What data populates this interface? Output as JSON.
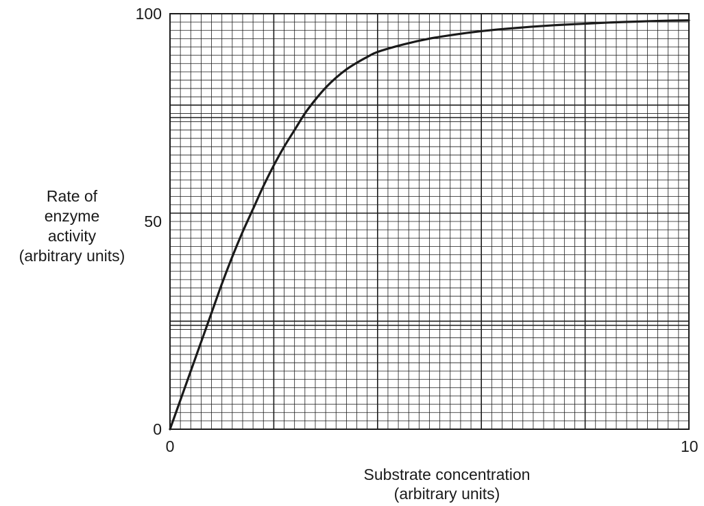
{
  "chart_data": {
    "type": "line",
    "title": "",
    "xlabel_lines": [
      "Substrate concentration",
      "(arbitrary units)"
    ],
    "ylabel_lines": [
      "Rate of",
      "enzyme",
      "activity",
      "(arbitrary units)"
    ],
    "xlim": [
      0,
      10
    ],
    "ylim": [
      0,
      100
    ],
    "x_ticks": [
      0,
      10
    ],
    "y_ticks": [
      0,
      50,
      100
    ],
    "grid": true,
    "grid_major_x_step": 2,
    "grid_major_y_step": 25,
    "grid_minor_x_step": 0.2,
    "grid_minor_y_step": 2,
    "series": [
      {
        "x": [
          0,
          0.2,
          0.4,
          0.6,
          0.8,
          1.0,
          1.2,
          1.4,
          1.6,
          1.8,
          2.0,
          2.2,
          2.4,
          2.6,
          2.8,
          3.0,
          3.2,
          3.4,
          3.6,
          3.8,
          4.0,
          4.5,
          5.0,
          5.5,
          6.0,
          6.5,
          7.0,
          7.5,
          8.0,
          8.5,
          9.0,
          9.5,
          10.0
        ],
        "y": [
          0,
          7,
          14,
          21,
          28,
          35,
          41.5,
          47.5,
          53,
          58.5,
          63.5,
          68,
          72,
          76,
          79.3,
          82.2,
          84.6,
          86.6,
          88.2,
          89.6,
          90.8,
          92.6,
          94,
          95,
          95.8,
          96.4,
          96.9,
          97.3,
          97.6,
          97.9,
          98.1,
          98.3,
          98.4
        ]
      }
    ],
    "colors": {
      "line": "#1a1a1a",
      "grid": "#1a1a1a",
      "background": "#ffffff"
    }
  }
}
